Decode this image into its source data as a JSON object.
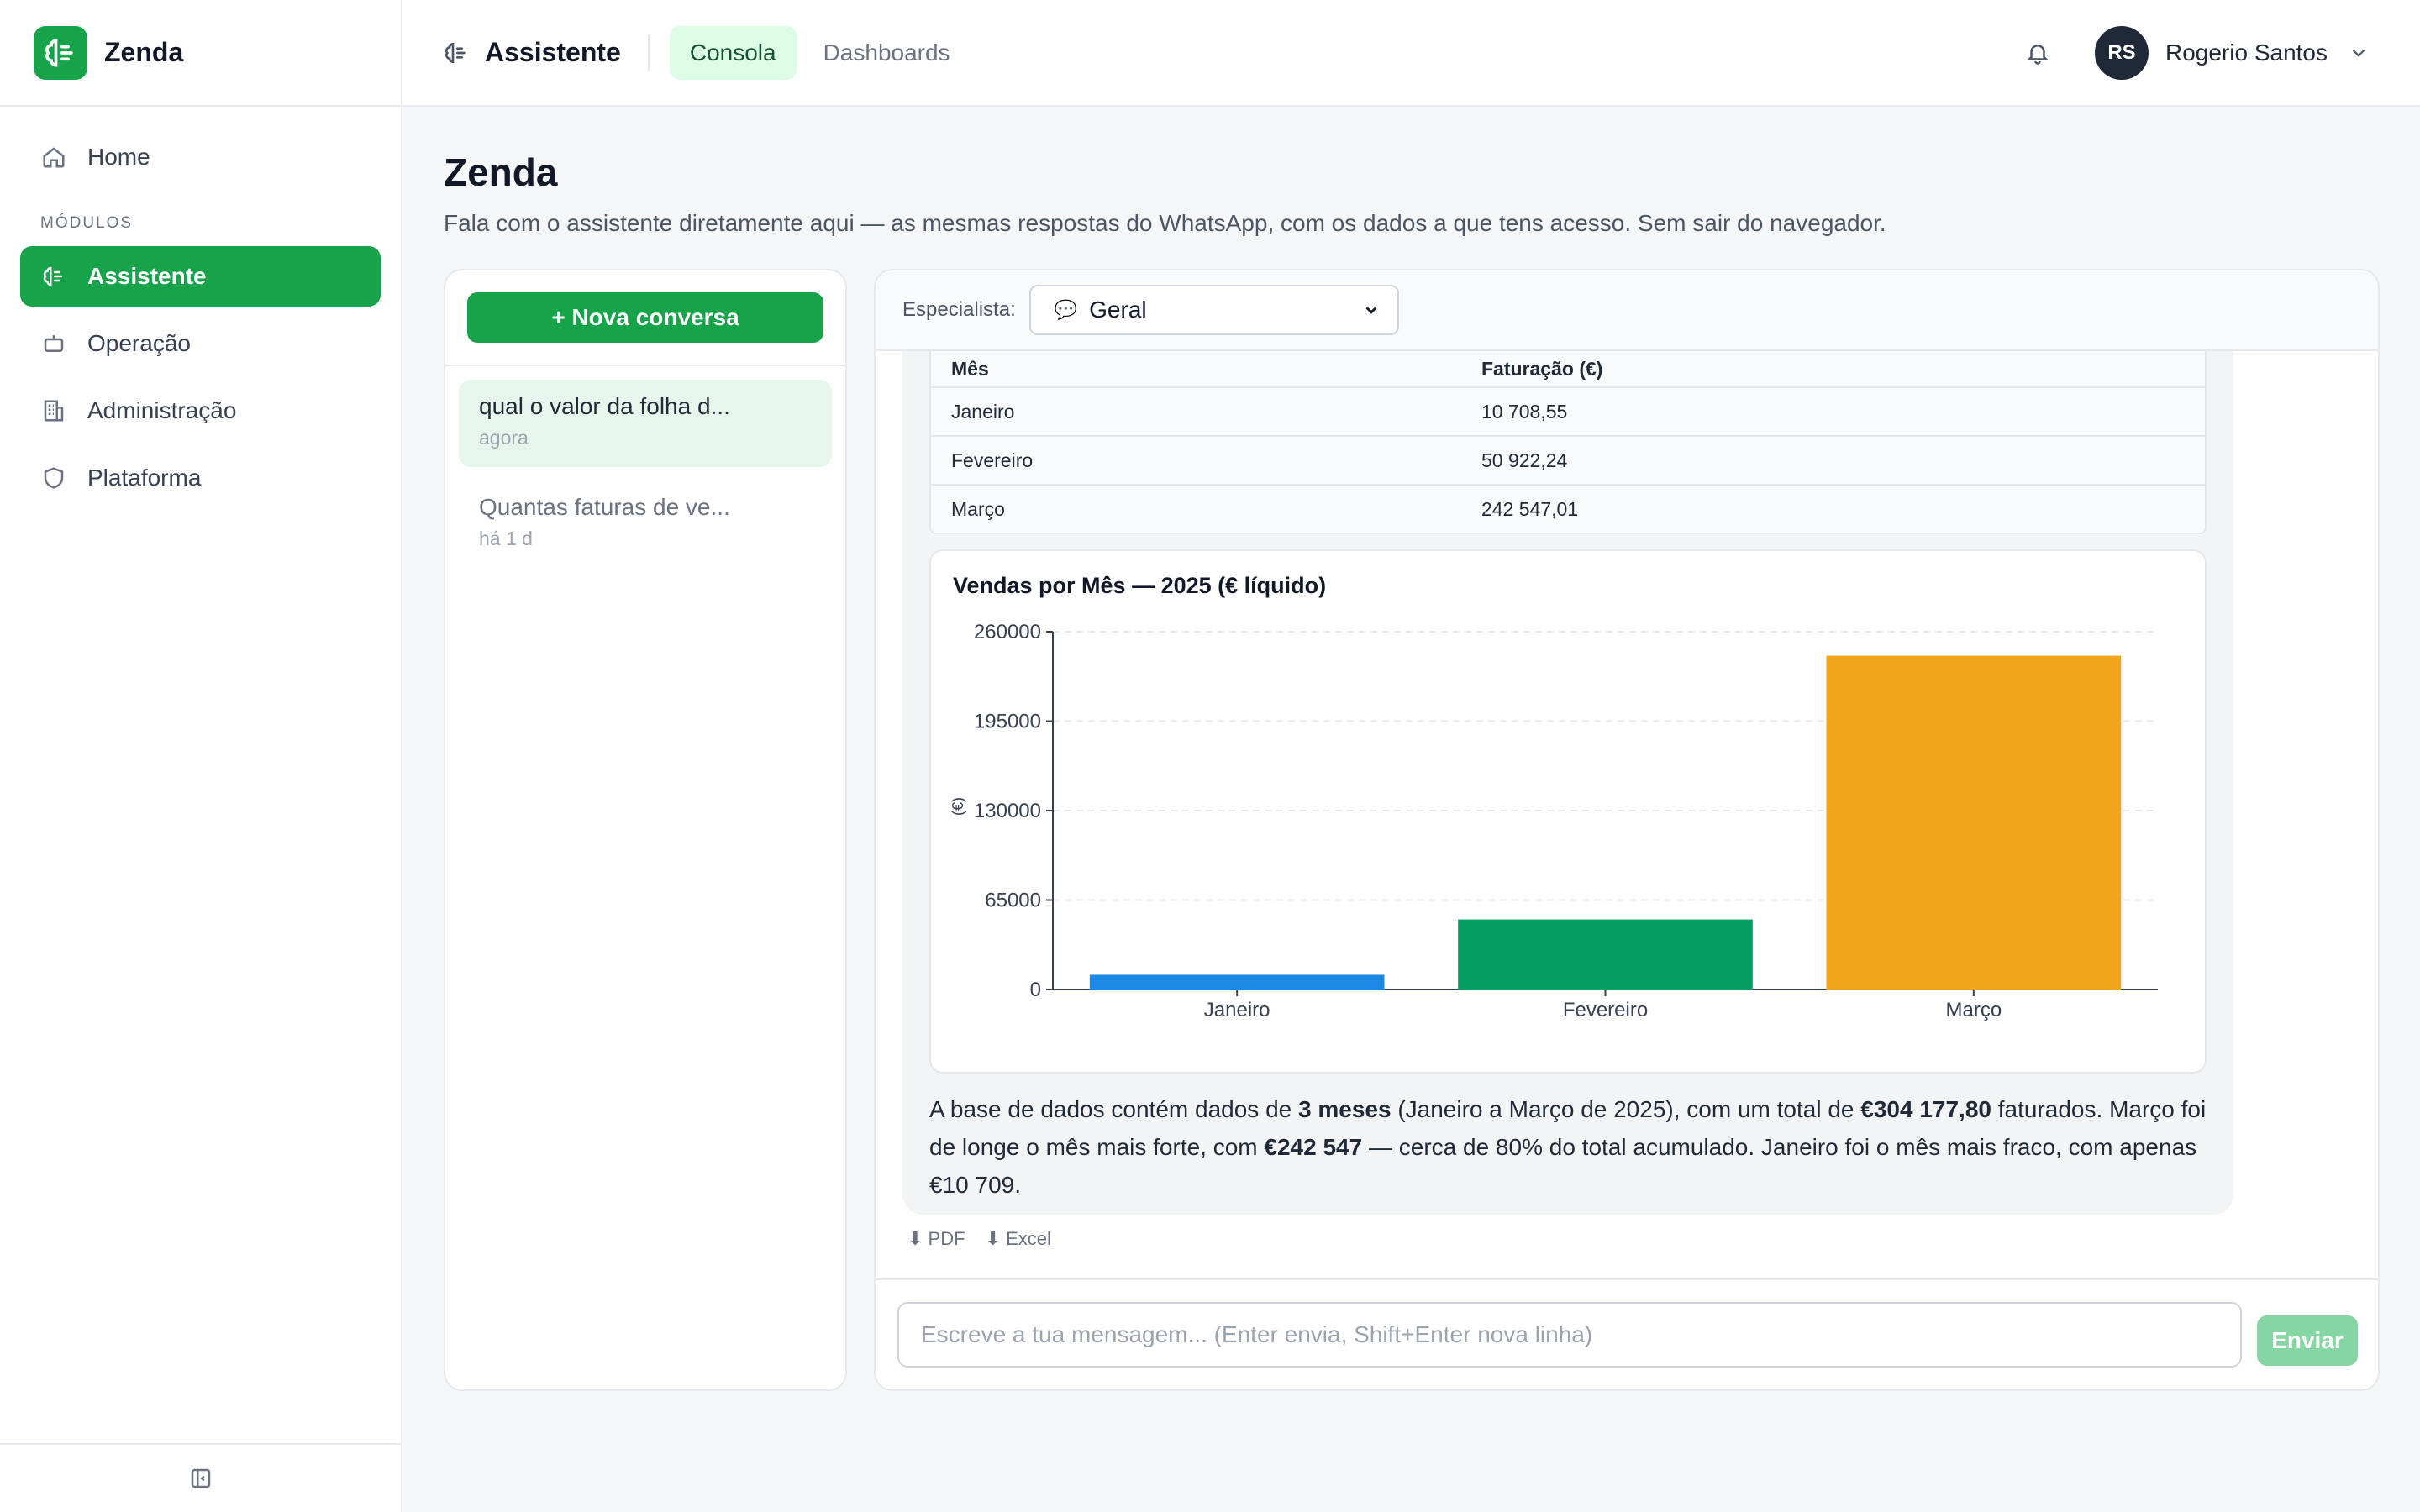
{
  "brand": {
    "name": "Zenda",
    "accent": "#16a34a"
  },
  "sidebar": {
    "home_label": "Home",
    "section_label": "MÓDULOS",
    "items": [
      {
        "label": "Assistente",
        "icon": "brain-icon",
        "active": true
      },
      {
        "label": "Operação",
        "icon": "robot-icon",
        "active": false
      },
      {
        "label": "Administração",
        "icon": "building-icon",
        "active": false
      },
      {
        "label": "Plataforma",
        "icon": "shield-icon",
        "active": false
      }
    ]
  },
  "topbar": {
    "title": "Assistente",
    "tabs": [
      {
        "label": "Consola",
        "active": true
      },
      {
        "label": "Dashboards",
        "active": false
      }
    ],
    "user": {
      "initials": "RS",
      "name": "Rogerio Santos"
    }
  },
  "page": {
    "title": "Zenda",
    "subtitle": "Fala com o assistente diretamente aqui — as mesmas respostas do WhatsApp, com os dados a que tens acesso. Sem sair do navegador."
  },
  "conversations": {
    "new_label": "+ Nova conversa",
    "items": [
      {
        "title": "qual o valor da folha d...",
        "time": "agora",
        "active": true
      },
      {
        "title": "Quantas faturas de ve...",
        "time": "há 1 d",
        "active": false
      }
    ]
  },
  "chat": {
    "specialist_label": "Especialista:",
    "specialist_value": "Geral",
    "table": {
      "headers": [
        "Mês",
        "Faturação (€)"
      ],
      "rows": [
        [
          "Janeiro",
          "10 708,55"
        ],
        [
          "Fevereiro",
          "50 922,24"
        ],
        [
          "Março",
          "242 547,01"
        ]
      ]
    },
    "answer": {
      "p1": "A base de dados contém dados de ",
      "b1": "3 meses",
      "p2": " (Janeiro a Março de 2025), com um total de ",
      "b2": "€304 177,80",
      "p3": " faturados. Março foi de longe o mês mais forte, com ",
      "b3": "€242 547",
      "p4": " — cerca de 80% do total acumulado. Janeiro foi o mês mais fraco, com apenas €10 709."
    },
    "downloads": {
      "pdf": "⬇ PDF",
      "excel": "⬇ Excel"
    },
    "composer_placeholder": "Escreve a tua mensagem...  (Enter envia, Shift+Enter nova linha)",
    "send_label": "Enviar"
  },
  "chart_data": {
    "type": "bar",
    "title": "Vendas por Mês — 2025 (€ líquido)",
    "ylabel": "(€)",
    "xlabel": "",
    "categories": [
      "Janeiro",
      "Fevereiro",
      "Março"
    ],
    "values": [
      10708.55,
      50922.24,
      242547.01
    ],
    "colors": [
      "#1e88e5",
      "#059e63",
      "#f0a51b"
    ],
    "ylim": [
      0,
      260000
    ],
    "yticks": [
      0,
      65000,
      130000,
      195000,
      260000
    ],
    "grid": true
  }
}
